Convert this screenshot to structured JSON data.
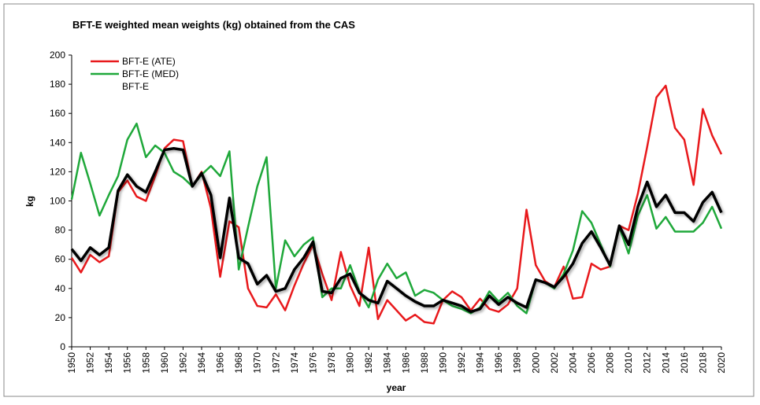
{
  "chart_data": {
    "type": "line",
    "title": "BFT-E weighted mean weights (kg) obtained from the CAS",
    "xlabel": "year",
    "ylabel": "kg",
    "x": [
      1950,
      1951,
      1952,
      1953,
      1954,
      1955,
      1956,
      1957,
      1958,
      1959,
      1960,
      1961,
      1962,
      1963,
      1964,
      1965,
      1966,
      1967,
      1968,
      1969,
      1970,
      1971,
      1972,
      1973,
      1974,
      1975,
      1976,
      1977,
      1978,
      1979,
      1980,
      1981,
      1982,
      1983,
      1984,
      1985,
      1986,
      1987,
      1988,
      1989,
      1990,
      1991,
      1992,
      1993,
      1994,
      1995,
      1996,
      1997,
      1998,
      1999,
      2000,
      2001,
      2002,
      2003,
      2004,
      2005,
      2006,
      2007,
      2008,
      2009,
      2010,
      2011,
      2012,
      2013,
      2014,
      2015,
      2016,
      2017,
      2018,
      2019,
      2020
    ],
    "series": [
      {
        "name": "BFT-E (ATE)",
        "color": "#e8191c",
        "values": [
          61,
          51,
          63,
          58,
          62,
          106,
          114,
          103,
          100,
          117,
          136,
          142,
          141,
          110,
          120,
          95,
          48,
          86,
          82,
          40,
          28,
          27,
          36,
          25,
          42,
          57,
          70,
          50,
          32,
          65,
          42,
          28,
          68,
          19,
          32,
          25,
          18,
          22,
          17,
          16,
          32,
          38,
          34,
          25,
          33,
          26,
          24,
          29,
          40,
          94,
          56,
          45,
          41,
          55,
          33,
          34,
          57,
          53,
          55,
          83,
          80,
          105,
          137,
          171,
          179,
          150,
          142,
          111,
          163,
          145,
          132
        ]
      },
      {
        "name": "BFT-E (MED)",
        "color": "#1fa83a",
        "values": [
          101,
          133,
          112,
          90,
          104,
          117,
          142,
          153,
          130,
          138,
          133,
          120,
          116,
          110,
          118,
          124,
          117,
          134,
          53,
          82,
          110,
          130,
          40,
          73,
          62,
          70,
          75,
          34,
          40,
          40,
          56,
          38,
          27,
          46,
          57,
          47,
          51,
          35,
          39,
          37,
          32,
          28,
          26,
          23,
          27,
          38,
          31,
          37,
          28,
          23,
          46,
          44,
          40,
          50,
          66,
          93,
          85,
          70,
          55,
          82,
          64,
          90,
          104,
          81,
          89,
          79,
          79,
          79,
          85,
          96,
          81
        ]
      },
      {
        "name": "BFT-E",
        "color": "#000000",
        "values": [
          67,
          59,
          68,
          63,
          68,
          107,
          118,
          110,
          106,
          120,
          135,
          136,
          135,
          110,
          119,
          104,
          61,
          102,
          61,
          57,
          43,
          49,
          38,
          40,
          53,
          61,
          72,
          38,
          37,
          47,
          50,
          37,
          32,
          30,
          45,
          40,
          35,
          31,
          28,
          28,
          32,
          30,
          28,
          24,
          26,
          35,
          29,
          34,
          30,
          27,
          46,
          44,
          41,
          48,
          57,
          71,
          79,
          68,
          56,
          83,
          70,
          96,
          113,
          96,
          104,
          92,
          92,
          86,
          99,
          106,
          92
        ]
      }
    ],
    "xlim": [
      1950,
      2020
    ],
    "xticks": [
      1950,
      1952,
      1954,
      1956,
      1958,
      1960,
      1962,
      1964,
      1966,
      1968,
      1970,
      1972,
      1974,
      1976,
      1978,
      1980,
      1982,
      1984,
      1986,
      1988,
      1990,
      1992,
      1994,
      1996,
      1998,
      2000,
      2002,
      2004,
      2006,
      2008,
      2010,
      2012,
      2014,
      2016,
      2018,
      2020
    ],
    "ylim": [
      0,
      200
    ],
    "yticks": [
      0,
      20,
      40,
      60,
      80,
      100,
      120,
      140,
      160,
      180,
      200
    ],
    "legend": "upper left"
  }
}
